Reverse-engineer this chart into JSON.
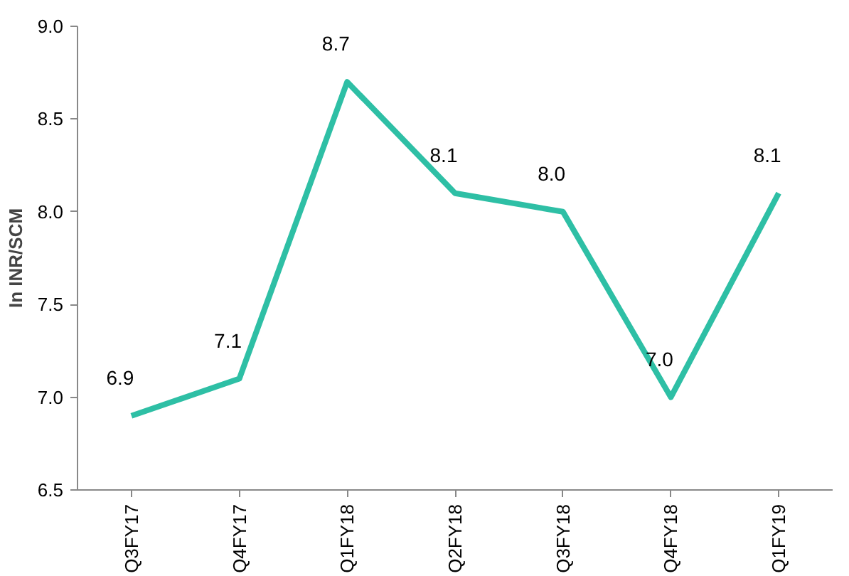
{
  "chart_data": {
    "type": "line",
    "ylabel": "In INR/SCM",
    "categories": [
      "Q3FY17",
      "Q4FY17",
      "Q1FY18",
      "Q2FY18",
      "Q3FY18",
      "Q4FY18",
      "Q1FY19"
    ],
    "series": [
      {
        "color": "#2ebfa5",
        "values": [
          6.9,
          7.1,
          8.7,
          8.1,
          8.0,
          7.0,
          8.1
        ],
        "value_labels": [
          "6.9",
          "7.1",
          "8.7",
          "8.1",
          "8.0",
          "7.0",
          "8.1"
        ]
      }
    ],
    "ylim": [
      6.5,
      9.0
    ],
    "yticks": [
      {
        "value": 6.5,
        "label": "6.5"
      },
      {
        "value": 7.0,
        "label": "7.0"
      },
      {
        "value": 7.5,
        "label": "7.5"
      },
      {
        "value": 8.0,
        "label": "8.0"
      },
      {
        "value": 8.5,
        "label": "8.5"
      },
      {
        "value": 9.0,
        "label": "9.0"
      }
    ],
    "grid": false,
    "marker": "none",
    "line_style": "solid"
  }
}
